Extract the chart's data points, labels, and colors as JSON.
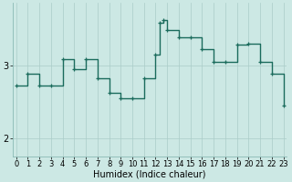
{
  "x": [
    0,
    1,
    2,
    3,
    4,
    5,
    6,
    7,
    8,
    9,
    10,
    11,
    12,
    12.33,
    12.67,
    13,
    14,
    15,
    16,
    17,
    18,
    19,
    20,
    21,
    22,
    23
  ],
  "y": [
    2.72,
    2.88,
    2.72,
    2.72,
    3.08,
    2.95,
    3.08,
    2.82,
    2.62,
    2.55,
    2.55,
    2.82,
    3.15,
    3.58,
    3.62,
    3.48,
    3.38,
    3.38,
    3.22,
    3.05,
    3.05,
    3.28,
    3.3,
    3.05,
    2.88,
    2.45
  ],
  "line_color": "#1a6b5c",
  "marker": "+",
  "marker_size": 3,
  "marker_lw": 0.9,
  "bg_color": "#cce8e4",
  "grid_color": "#aaccc8",
  "xlabel": "Humidex (Indice chaleur)",
  "xlabel_fontsize": 7,
  "ytick_labels": [
    "2",
    "3"
  ],
  "ytick_vals": [
    2.0,
    3.0
  ],
  "ylim": [
    1.75,
    3.85
  ],
  "xlim": [
    -0.3,
    23.3
  ],
  "tick_fontsize": 7,
  "line_width": 1.0,
  "xtick_labels": [
    "0",
    "1",
    "2",
    "3",
    "4",
    "5",
    "6",
    "7",
    "8",
    "9",
    "10",
    "11",
    "12",
    "13",
    "14",
    "15",
    "16",
    "17",
    "18",
    "19",
    "20",
    "21",
    "22",
    "23"
  ]
}
